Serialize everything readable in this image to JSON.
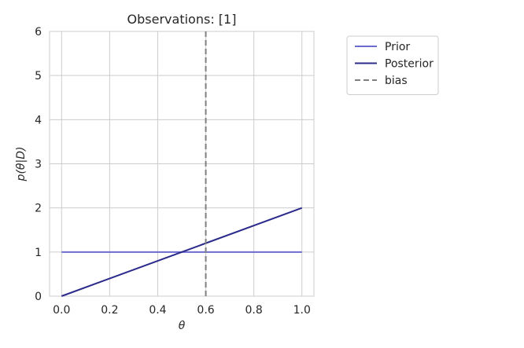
{
  "chart_data": {
    "type": "line",
    "title": "Observations: [1]",
    "xlabel": "θ",
    "ylabel": "p(θ|D)",
    "xlim": [
      -0.05,
      1.05
    ],
    "ylim": [
      0,
      6
    ],
    "xticks": [
      0.0,
      0.2,
      0.4,
      0.6,
      0.8,
      1.0
    ],
    "xtick_labels": [
      "0.0",
      "0.2",
      "0.4",
      "0.6",
      "0.8",
      "1.0"
    ],
    "yticks": [
      0,
      1,
      2,
      3,
      4,
      5,
      6
    ],
    "ytick_labels": [
      "0",
      "1",
      "2",
      "3",
      "4",
      "5",
      "6"
    ],
    "grid": true,
    "legend_placement": "outside-top-right",
    "series": [
      {
        "name": "Prior",
        "x": [
          0.0,
          1.0
        ],
        "y": [
          1,
          1
        ],
        "color": "#6c6cd0",
        "style": "solid"
      },
      {
        "name": "Posterior",
        "x": [
          0.0,
          1.0
        ],
        "y": [
          0,
          2
        ],
        "color": "#2b2b8c",
        "style": "solid"
      }
    ],
    "vlines": [
      {
        "name": "bias",
        "x": 0.6,
        "color": "#808080",
        "style": "dashed"
      }
    ]
  }
}
